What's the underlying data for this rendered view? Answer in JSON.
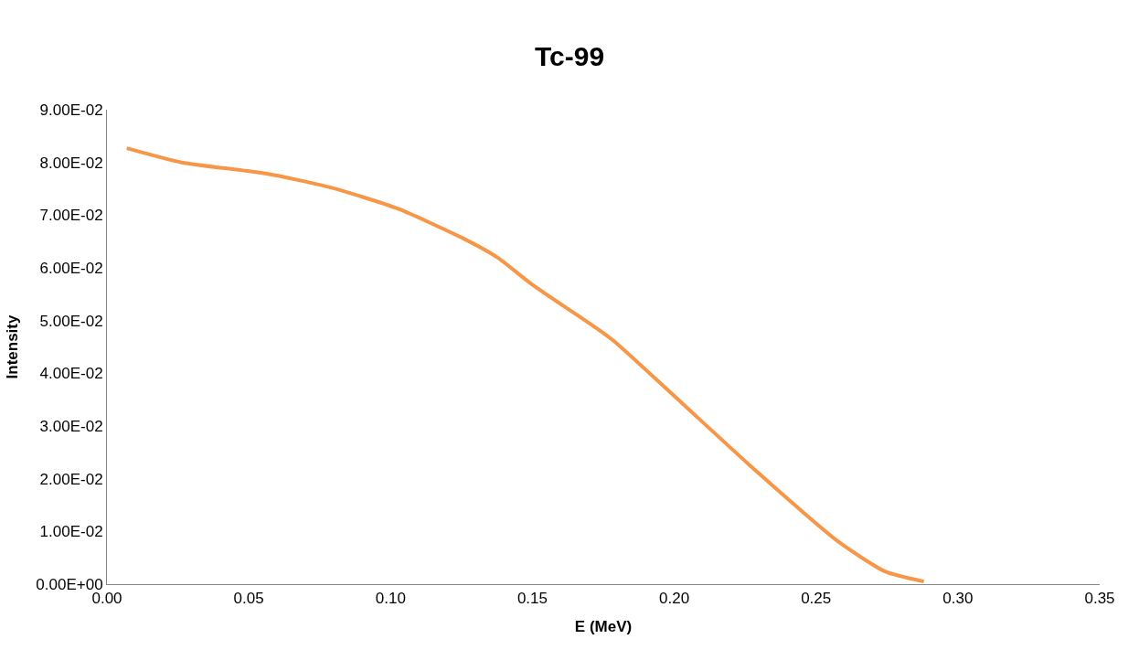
{
  "chart_data": {
    "type": "line",
    "title": "Tc-99",
    "xlabel": "E (MeV)",
    "ylabel": "Intensity",
    "x": [
      0.007,
      0.0264,
      0.0559,
      0.0792,
      0.1027,
      0.1263,
      0.1379,
      0.1495,
      0.173,
      0.179,
      0.201,
      0.229,
      0.2575,
      0.2744,
      0.288
    ],
    "series": [
      {
        "color": "#f79646",
        "values": [
          0.0827,
          0.08,
          0.0779,
          0.0752,
          0.0712,
          0.0654,
          0.0619,
          0.057,
          0.0484,
          0.046,
          0.0352,
          0.0214,
          0.0082,
          0.0024,
          0.0005
        ]
      }
    ],
    "xlim": [
      0,
      0.35
    ],
    "xticks": [
      {
        "value": 0,
        "label": "0.00"
      },
      {
        "value": 0.05,
        "label": "0.05"
      },
      {
        "value": 0.1,
        "label": "0.10"
      },
      {
        "value": 0.15,
        "label": "0.15"
      },
      {
        "value": 0.2,
        "label": "0.20"
      },
      {
        "value": 0.25,
        "label": "0.25"
      },
      {
        "value": 0.3,
        "label": "0.30"
      },
      {
        "value": 0.35,
        "label": "0.35"
      }
    ],
    "ylim": [
      0,
      0.09
    ],
    "yticks": [
      {
        "value": 0,
        "label": "0.00E+00"
      },
      {
        "value": 0.01,
        "label": "1.00E-02"
      },
      {
        "value": 0.02,
        "label": "2.00E-02"
      },
      {
        "value": 0.03,
        "label": "3.00E-02"
      },
      {
        "value": 0.04,
        "label": "4.00E-02"
      },
      {
        "value": 0.05,
        "label": "5.00E-02"
      },
      {
        "value": 0.06,
        "label": "6.00E-02"
      },
      {
        "value": 0.07,
        "label": "7.00E-02"
      },
      {
        "value": 0.08,
        "label": "8.00E-02"
      },
      {
        "value": 0.09,
        "label": "9.00E-02"
      }
    ],
    "marker": "none",
    "line_style": "solid"
  }
}
